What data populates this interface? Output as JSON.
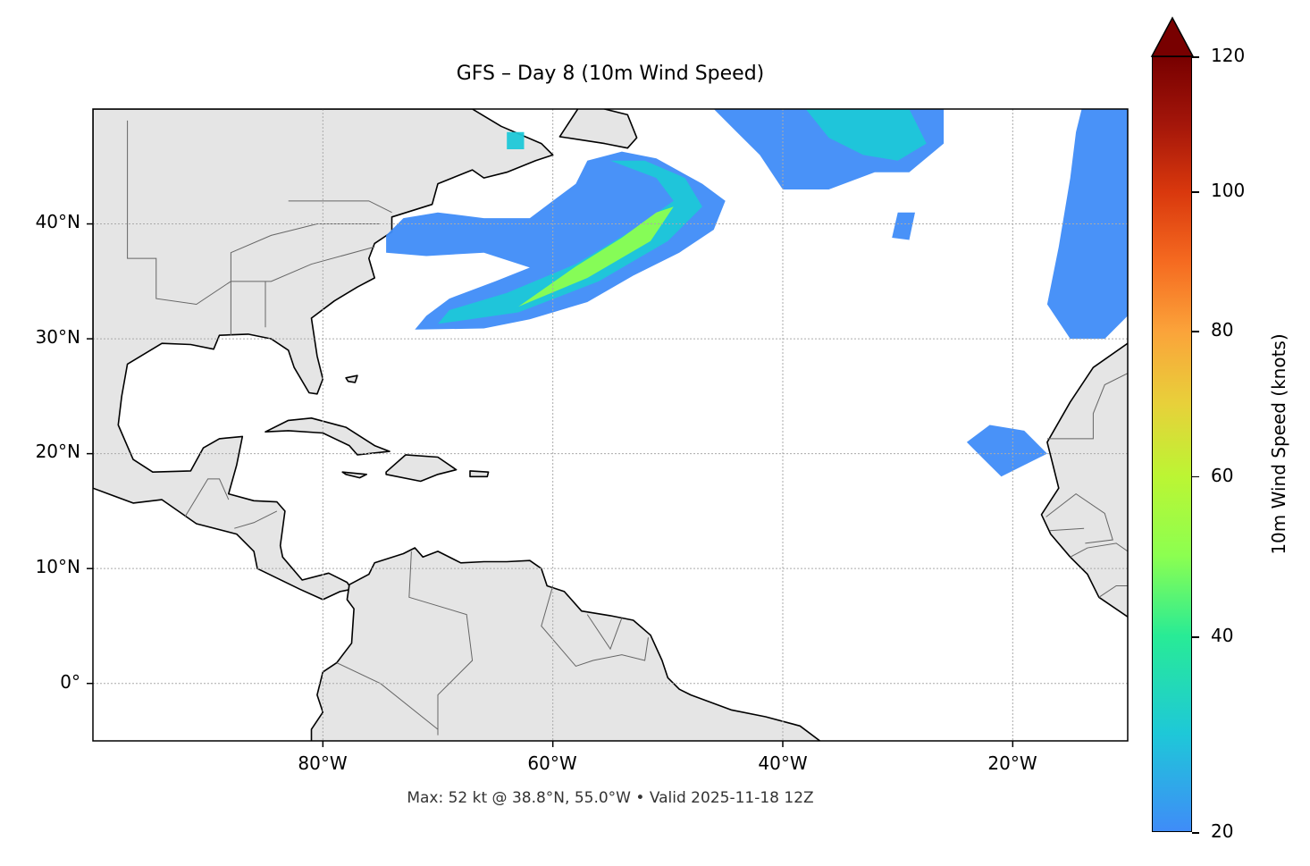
{
  "title": "GFS – Day 8 (10m Wind Speed)",
  "footer": "Max: 52 kt @ 38.8°N, 55.0°W • Valid 2025-11-18 12Z",
  "map": {
    "extent": {
      "lon": [
        -100,
        -10
      ],
      "lat": [
        -5,
        50
      ]
    },
    "projection": "plate-carree",
    "land_color": "#e5e5e5",
    "coast_color": "#000000",
    "border_color": "#666666",
    "gridlines": "dotted",
    "x_ticks": [
      "80°W",
      "60°W",
      "40°W",
      "20°W"
    ],
    "y_ticks": [
      "40°N",
      "30°N",
      "20°N",
      "10°N",
      "0°"
    ]
  },
  "colorbar": {
    "label": "10m Wind Speed (knots)",
    "ticks": [
      "20",
      "40",
      "60",
      "80",
      "100",
      "120"
    ],
    "range": [
      20,
      120
    ],
    "extend": "max",
    "colormap": "turbo-like",
    "colors": [
      "#3f8cf8",
      "#1ec8d8",
      "#28eb96",
      "#8cff50",
      "#bcf533",
      "#e8d03a",
      "#fba33a",
      "#f56a20",
      "#d9380d",
      "#a4160a",
      "#780000"
    ]
  }
}
